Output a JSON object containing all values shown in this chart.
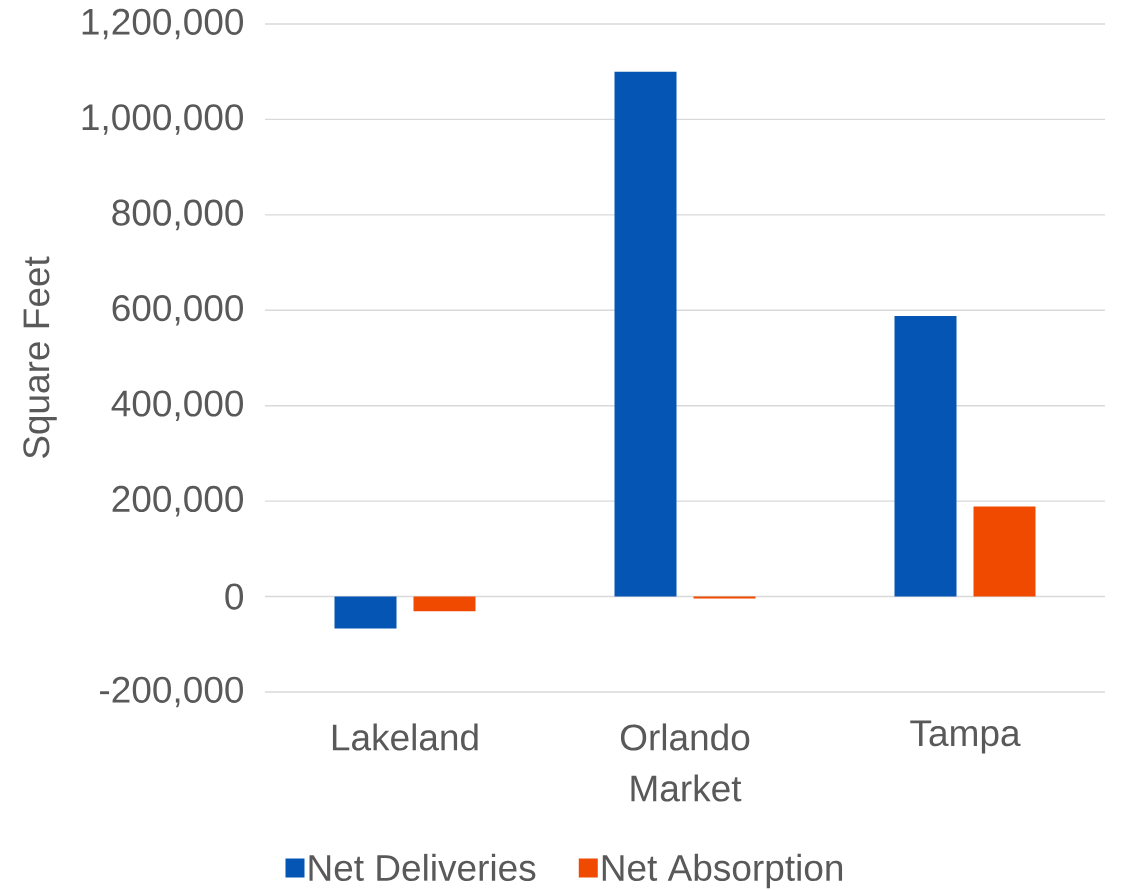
{
  "chart_data": {
    "type": "bar",
    "xlabel": "Market",
    "ylabel": "Square Feet",
    "categories": [
      "Lakeland",
      "Orlando",
      "Tampa"
    ],
    "series": [
      {
        "name": "Net Deliveries",
        "color": "#0555b5",
        "values": [
          -67000,
          1100000,
          588000
        ]
      },
      {
        "name": "Net Absorption",
        "color": "#ef4a00",
        "values": [
          -31000,
          -4000,
          189000
        ]
      }
    ],
    "ylim": [
      -200000,
      1200000
    ],
    "yticks": [
      {
        "value": -200000,
        "label": "-200,000"
      },
      0,
      {
        "value": 200000,
        "label": "200,000"
      },
      {
        "value": 400000,
        "label": "400,000"
      },
      {
        "value": 600000,
        "label": "600,000"
      },
      {
        "value": 800000,
        "label": "800,000"
      },
      {
        "value": 1000000,
        "label": "1,000,000"
      },
      {
        "value": 1200000,
        "label": "1,200,000"
      }
    ],
    "grid": "y",
    "legend": "bottom"
  }
}
